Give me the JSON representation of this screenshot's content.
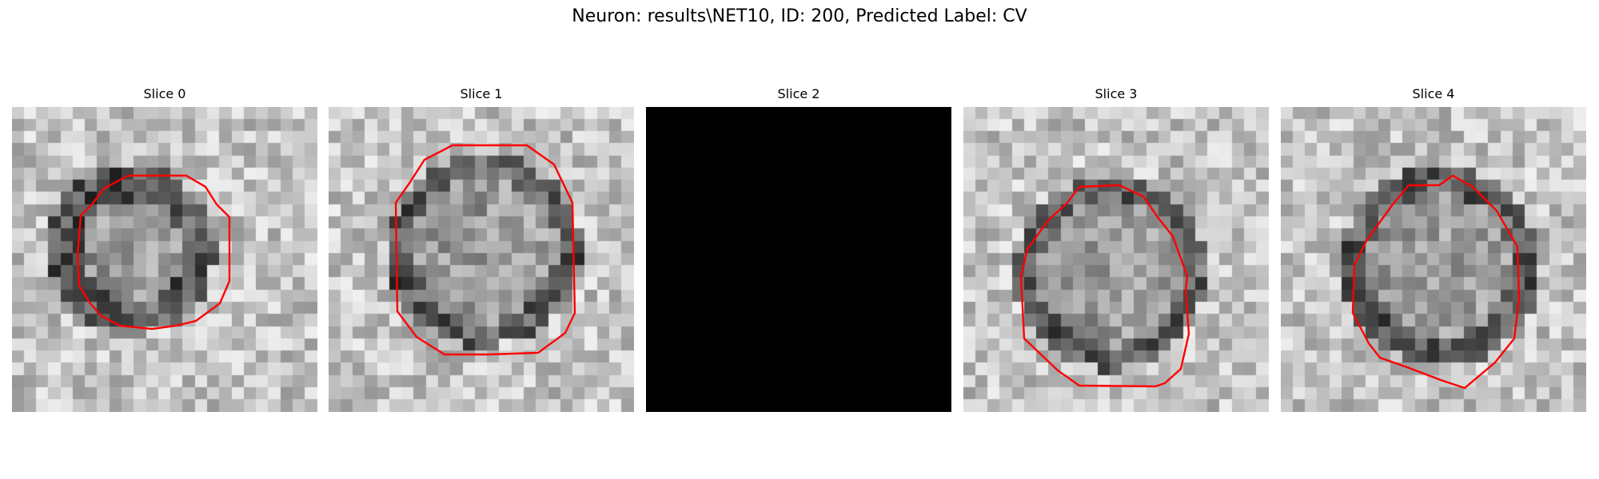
{
  "suptitle": "Neuron: results\\NET10, ID: 200, Predicted Label: CV",
  "image": {
    "colormap": "gray",
    "contour_color": "#ff0000",
    "grid_cells": 25
  },
  "panels": [
    {
      "title": "Slice 0",
      "has_contour": true,
      "blank": false
    },
    {
      "title": "Slice 1",
      "has_contour": true,
      "blank": false
    },
    {
      "title": "Slice 2",
      "has_contour": false,
      "blank": true
    },
    {
      "title": "Slice 3",
      "has_contour": true,
      "blank": false
    },
    {
      "title": "Slice 4",
      "has_contour": true,
      "blank": false
    }
  ]
}
